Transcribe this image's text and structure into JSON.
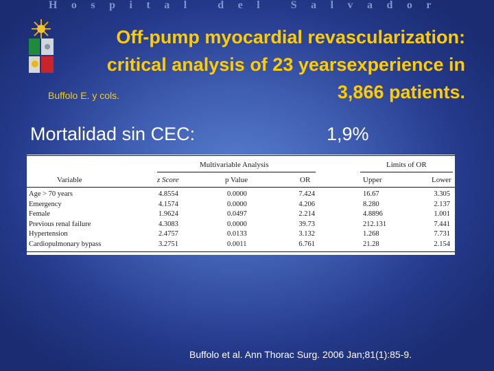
{
  "banner": "Hospital del Salvador",
  "title": {
    "line1": "Off-pump myocardial revascularization:",
    "line2": "critical analysis of 23 yearsexperience in",
    "line3": "3,866 patients."
  },
  "authors": "Buffolo E. y cols.",
  "mortality": {
    "label": "Mortalidad sin CEC:",
    "value": "1,9%"
  },
  "table": {
    "group_headers": {
      "multivariable": "Multivariable Analysis",
      "limits": "Limits of OR"
    },
    "columns": [
      "Variable",
      "z Score",
      "p Value",
      "OR",
      "Upper",
      "Lower"
    ],
    "rows": [
      [
        "Age > 70 years",
        "4.8554",
        "0.0000",
        "7.424",
        "16.67",
        "3.305"
      ],
      [
        "Emergency",
        "4.1574",
        "0.0000",
        "4.206",
        "8.280",
        "2.137"
      ],
      [
        "Female",
        "1.9624",
        "0.0497",
        "2.214",
        "4.8896",
        "1.001"
      ],
      [
        "Previous renal failure",
        "4.3083",
        "0.0000",
        "39.73",
        "212.131",
        "7.441"
      ],
      [
        "Hypertension",
        "2.4757",
        "0.0133",
        "3.132",
        "1.268",
        "7.731"
      ],
      [
        "Cardiopulmonary bypass",
        "3.2751",
        "0.0011",
        "6.761",
        "21.28",
        "2.154"
      ]
    ]
  },
  "citation": "Buffolo et al. Ann Thorac Surg. 2006 Jan;81(1):85-9.",
  "colors": {
    "title": "#ffcc00",
    "banner": "#7f95cc",
    "text": "#ffffff"
  }
}
